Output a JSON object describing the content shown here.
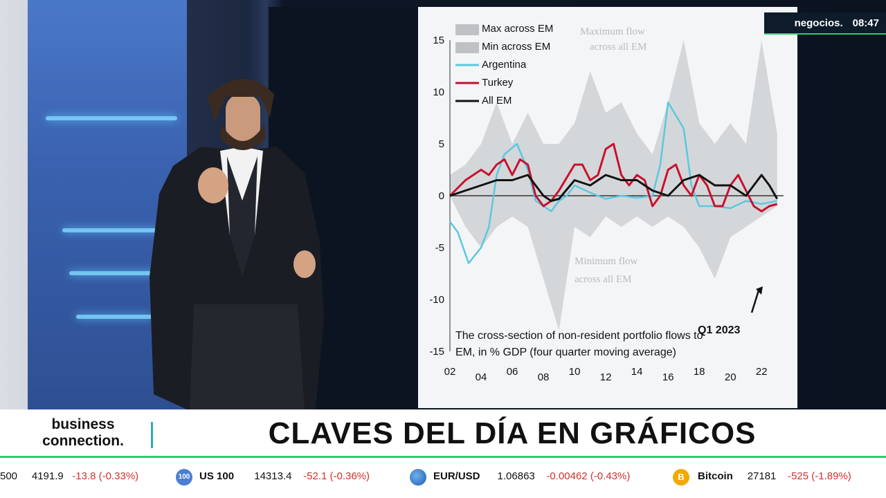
{
  "broadcast": {
    "channel": "negocios.",
    "time": "08:47",
    "brand_line1": "business",
    "brand_line2": "connection.",
    "headline": "CLAVES DEL DÍA EN GRÁFICOS"
  },
  "ticker": [
    {
      "name": "500",
      "value": "4191.9",
      "change": "-13.8 (-0.33%)"
    },
    {
      "name": "US 100",
      "value": "14313.4",
      "change": "-52.1 (-0.36%)",
      "icon": "100"
    },
    {
      "name": "EUR/USD",
      "value": "1.06863",
      "change": "-0.00462 (-0.43%)",
      "icon": "globe-icon"
    },
    {
      "name": "Bitcoin",
      "value": "27181",
      "change": "-525 (-1.89%)",
      "icon": "B"
    }
  ],
  "chart_data": {
    "type": "area",
    "legend": [
      "Max across EM",
      "Min across EM",
      "Argentina",
      "Turkey",
      "All EM"
    ],
    "series_colors": {
      "band": "#c9cccf",
      "Argentina": "#5bc8e0",
      "Turkey": "#c8102e",
      "All EM": "#111111"
    },
    "annotations": {
      "max_note_1": "Maximum flow",
      "max_note_2": "across all EM",
      "min_note_1": "Minimum flow",
      "min_note_2": "across all EM",
      "quarter": "Q1 2023",
      "caption_1": "The cross-section of non-resident portfolio flows to",
      "caption_2": "EM, in % GDP (four quarter moving average)"
    },
    "xlim": [
      2002,
      2023.5
    ],
    "ylim": [
      -15,
      15
    ],
    "yticks": [
      {
        "v": 15,
        "l": "15"
      },
      {
        "v": 10,
        "l": "10"
      },
      {
        "v": 5,
        "l": "5"
      },
      {
        "v": 0,
        "l": "0"
      },
      {
        "v": -5,
        "l": "-5"
      },
      {
        "v": -10,
        "l": "-10"
      },
      {
        "v": -15,
        "l": "-15"
      }
    ],
    "xticks": [
      {
        "v": 2002,
        "l": "02"
      },
      {
        "v": 2004,
        "l": "04"
      },
      {
        "v": 2006,
        "l": "06"
      },
      {
        "v": 2008,
        "l": "08"
      },
      {
        "v": 2010,
        "l": "10"
      },
      {
        "v": 2012,
        "l": "12"
      },
      {
        "v": 2014,
        "l": "14"
      },
      {
        "v": 2016,
        "l": "16"
      },
      {
        "v": 2018,
        "l": "18"
      },
      {
        "v": 2020,
        "l": "20"
      },
      {
        "v": 2022,
        "l": "22"
      }
    ],
    "max_band": [
      [
        2002,
        2
      ],
      [
        2003,
        3
      ],
      [
        2004,
        5
      ],
      [
        2005,
        9
      ],
      [
        2006,
        5
      ],
      [
        2007,
        8
      ],
      [
        2008,
        5
      ],
      [
        2009,
        5
      ],
      [
        2010,
        7
      ],
      [
        2011,
        12
      ],
      [
        2012,
        8
      ],
      [
        2013,
        9
      ],
      [
        2014,
        6
      ],
      [
        2015,
        4
      ],
      [
        2016,
        9
      ],
      [
        2017,
        15
      ],
      [
        2018,
        7
      ],
      [
        2019,
        5
      ],
      [
        2020,
        7
      ],
      [
        2021,
        5
      ],
      [
        2022,
        15
      ],
      [
        2023,
        6
      ]
    ],
    "min_band": [
      [
        2002,
        0
      ],
      [
        2003,
        -3
      ],
      [
        2004,
        -5
      ],
      [
        2005,
        -3
      ],
      [
        2006,
        -2
      ],
      [
        2007,
        -3
      ],
      [
        2008,
        -8
      ],
      [
        2009,
        -13
      ],
      [
        2010,
        -3
      ],
      [
        2011,
        -4
      ],
      [
        2012,
        -2
      ],
      [
        2013,
        -3
      ],
      [
        2014,
        -2
      ],
      [
        2015,
        -3
      ],
      [
        2016,
        -2
      ],
      [
        2017,
        -3
      ],
      [
        2018,
        -5
      ],
      [
        2019,
        -8
      ],
      [
        2020,
        -4
      ],
      [
        2021,
        -3
      ],
      [
        2022,
        -2
      ],
      [
        2023,
        -1
      ]
    ],
    "argentina": [
      [
        2002,
        -2.5
      ],
      [
        2002.5,
        -3.5
      ],
      [
        2003.2,
        -6.5
      ],
      [
        2004,
        -5
      ],
      [
        2004.5,
        -3
      ],
      [
        2005,
        2
      ],
      [
        2005.5,
        4
      ],
      [
        2006.3,
        5
      ],
      [
        2007,
        2.5
      ],
      [
        2007.5,
        -0.5
      ],
      [
        2008,
        -1
      ],
      [
        2008.5,
        -1.5
      ],
      [
        2009,
        -0.5
      ],
      [
        2009.5,
        0
      ],
      [
        2010,
        1
      ],
      [
        2011,
        0.3
      ],
      [
        2012,
        -0.3
      ],
      [
        2013,
        0
      ],
      [
        2014,
        -0.2
      ],
      [
        2015,
        0
      ],
      [
        2015.5,
        3
      ],
      [
        2016,
        9
      ],
      [
        2017,
        6.5
      ],
      [
        2017.5,
        1
      ],
      [
        2018,
        -1
      ],
      [
        2019,
        -1
      ],
      [
        2020,
        -1.2
      ],
      [
        2021,
        -0.5
      ],
      [
        2022,
        -0.8
      ],
      [
        2023,
        -0.5
      ]
    ],
    "turkey": [
      [
        2002,
        0
      ],
      [
        2003,
        1.5
      ],
      [
        2004,
        2.5
      ],
      [
        2004.5,
        2
      ],
      [
        2005,
        3
      ],
      [
        2005.5,
        3.5
      ],
      [
        2006,
        2
      ],
      [
        2006.5,
        3.5
      ],
      [
        2007,
        3
      ],
      [
        2007.5,
        0
      ],
      [
        2008,
        -1
      ],
      [
        2008.5,
        -0.5
      ],
      [
        2009,
        0.5
      ],
      [
        2010,
        3
      ],
      [
        2010.5,
        3
      ],
      [
        2011,
        1.5
      ],
      [
        2011.5,
        2
      ],
      [
        2012,
        4.5
      ],
      [
        2012.5,
        5
      ],
      [
        2013,
        2
      ],
      [
        2013.5,
        1
      ],
      [
        2014,
        2
      ],
      [
        2014.5,
        1.5
      ],
      [
        2015,
        -1
      ],
      [
        2015.5,
        0
      ],
      [
        2016,
        2.5
      ],
      [
        2016.5,
        3
      ],
      [
        2017,
        1
      ],
      [
        2017.5,
        0
      ],
      [
        2018,
        2
      ],
      [
        2018.5,
        1
      ],
      [
        2019,
        -1
      ],
      [
        2019.5,
        -1
      ],
      [
        2020,
        1
      ],
      [
        2020.5,
        2
      ],
      [
        2021,
        0.5
      ],
      [
        2021.5,
        -1
      ],
      [
        2022,
        -1.5
      ],
      [
        2022.5,
        -1
      ],
      [
        2023,
        -0.8
      ]
    ],
    "all_em": [
      [
        2002,
        0
      ],
      [
        2003,
        0.5
      ],
      [
        2004,
        1
      ],
      [
        2005,
        1.5
      ],
      [
        2006,
        1.5
      ],
      [
        2007,
        2
      ],
      [
        2007.5,
        1
      ],
      [
        2008,
        0
      ],
      [
        2008.5,
        -0.5
      ],
      [
        2009,
        -0.3
      ],
      [
        2010,
        1.5
      ],
      [
        2011,
        1
      ],
      [
        2012,
        2
      ],
      [
        2013,
        1.5
      ],
      [
        2014,
        1.5
      ],
      [
        2015,
        0.5
      ],
      [
        2016,
        0
      ],
      [
        2017,
        1.5
      ],
      [
        2018,
        2
      ],
      [
        2019,
        1
      ],
      [
        2020,
        1
      ],
      [
        2021,
        0
      ],
      [
        2022,
        2
      ],
      [
        2022.5,
        1
      ],
      [
        2023,
        -0.3
      ]
    ]
  }
}
